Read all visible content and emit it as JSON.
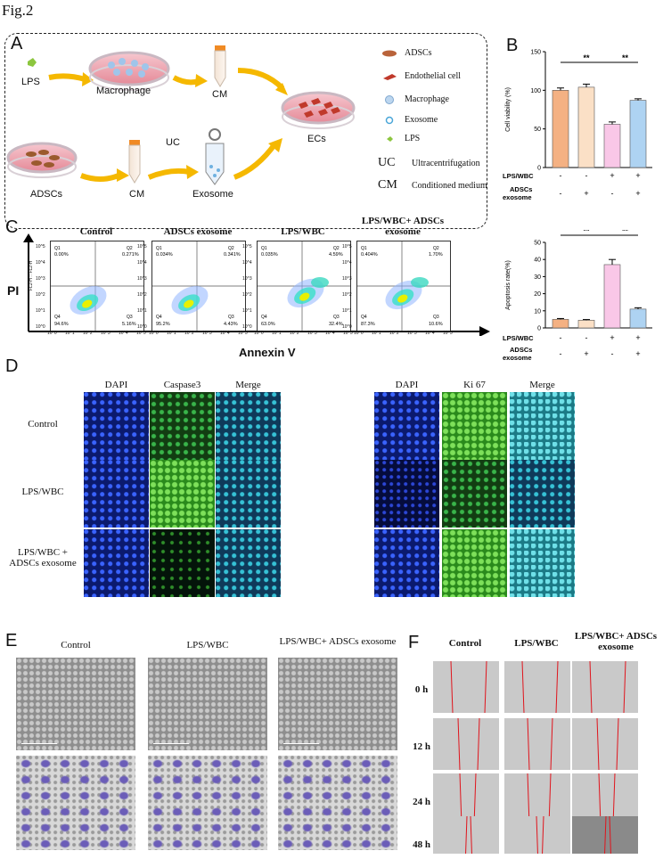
{
  "figure_label": "Fig.2",
  "panels": {
    "a": "A",
    "b": "B",
    "c": "C",
    "d": "D",
    "e": "E",
    "f": "F"
  },
  "panel_a": {
    "lps": "LPS",
    "macrophage": "Macrophage",
    "cm_top": "CM",
    "ecs": "ECs",
    "adscs": "ADSCs",
    "cm_bottom": "CM",
    "uc": "UC",
    "exosome": "Exosome",
    "legend": [
      {
        "icon": "adscs-icon",
        "label": "ADSCs"
      },
      {
        "icon": "endothelial-cell-icon",
        "label": "Endothelial cell"
      },
      {
        "icon": "macrophage-icon",
        "label": "Macrophage"
      },
      {
        "icon": "exosome-icon",
        "label": "Exosome"
      },
      {
        "icon": "lps-icon",
        "label": "LPS"
      }
    ],
    "abbr": [
      {
        "abbr": "UC",
        "full": "Ultracentrifugation"
      },
      {
        "abbr": "CM",
        "full": "Conditioned medium"
      }
    ]
  },
  "chart_data": [
    {
      "type": "bar",
      "title": "",
      "ylabel": "Cell viability (%)",
      "ylim": [
        0,
        150
      ],
      "yticks": [
        0,
        50,
        100,
        150
      ],
      "values": [
        100,
        104,
        56,
        87
      ],
      "errors": [
        3,
        4,
        3,
        2
      ],
      "colors": [
        "#f4b183",
        "#fbe0c6",
        "#f9c7e7",
        "#aed3f2"
      ],
      "significance": [
        {
          "label": "**"
        },
        {
          "label": "**"
        }
      ],
      "conditions": [
        {
          "name": "LPS/WBC",
          "signs": [
            "-",
            "-",
            "+",
            "+"
          ]
        },
        {
          "name": "ADSCs exosome",
          "signs": [
            "-",
            "+",
            "-",
            "+"
          ]
        }
      ]
    },
    {
      "type": "bar",
      "title": "",
      "ylabel": "Apoptosis rate(%)",
      "ylim": [
        0,
        50
      ],
      "yticks": [
        0,
        10,
        20,
        30,
        40,
        50
      ],
      "values": [
        5,
        4.5,
        37,
        11
      ],
      "errors": [
        0.5,
        0.4,
        3,
        0.8
      ],
      "colors": [
        "#f4b183",
        "#fbe0c6",
        "#f9c7e7",
        "#aed3f2"
      ],
      "significance": [
        {
          "label": "**"
        },
        {
          "label": "**"
        }
      ],
      "conditions": [
        {
          "name": "LPS/WBC",
          "signs": [
            "-",
            "-",
            "+",
            "+"
          ]
        },
        {
          "name": "ADSCs exosome",
          "signs": [
            "-",
            "+",
            "-",
            "+"
          ]
        }
      ]
    },
    {
      "type": "scatter",
      "xlabel": "Annexin V",
      "ylabel": "PI",
      "axis_x_code": "FL1-H :: FL1-H",
      "axis_y_code": "FL2-H :: FL2-H",
      "log_ticks": [
        "10^0",
        "10^1",
        "10^2",
        "10^3",
        "10^4",
        "10^5"
      ],
      "plots": [
        {
          "title": "Control",
          "q1": "0.00%",
          "q2": "0.271%",
          "q3": "5.16%",
          "q4": "94.6%"
        },
        {
          "title": "ADSCs exosome",
          "q1": "0.034%",
          "q2": "0.341%",
          "q3": "4.43%",
          "q4": "95.2%"
        },
        {
          "title": "LPS/WBC",
          "q1": "0.035%",
          "q2": "4.59%",
          "q3": "32.4%",
          "q4": "63.0%"
        },
        {
          "title": "LPS/WBC+ ADSCs exosome",
          "q1": "0.404%",
          "q2": "1.70%",
          "q3": "10.6%",
          "q4": "87.3%"
        }
      ]
    }
  ],
  "panel_d": {
    "left_columns": [
      "DAPI",
      "Caspase3",
      "Merge"
    ],
    "right_columns": [
      "DAPI",
      "Ki 67",
      "Merge"
    ],
    "rows": [
      "Control",
      "LPS/WBC",
      "LPS/WBC + ADSCs exosome"
    ]
  },
  "panel_e": {
    "columns": [
      "Control",
      "LPS/WBC",
      "LPS/WBC+ ADSCs exosome"
    ]
  },
  "panel_f": {
    "columns": [
      "Control",
      "LPS/WBC",
      "LPS/WBC+ ADSCs exosome"
    ],
    "rows": [
      "0 h",
      "12 h",
      "24 h",
      "48 h"
    ]
  }
}
